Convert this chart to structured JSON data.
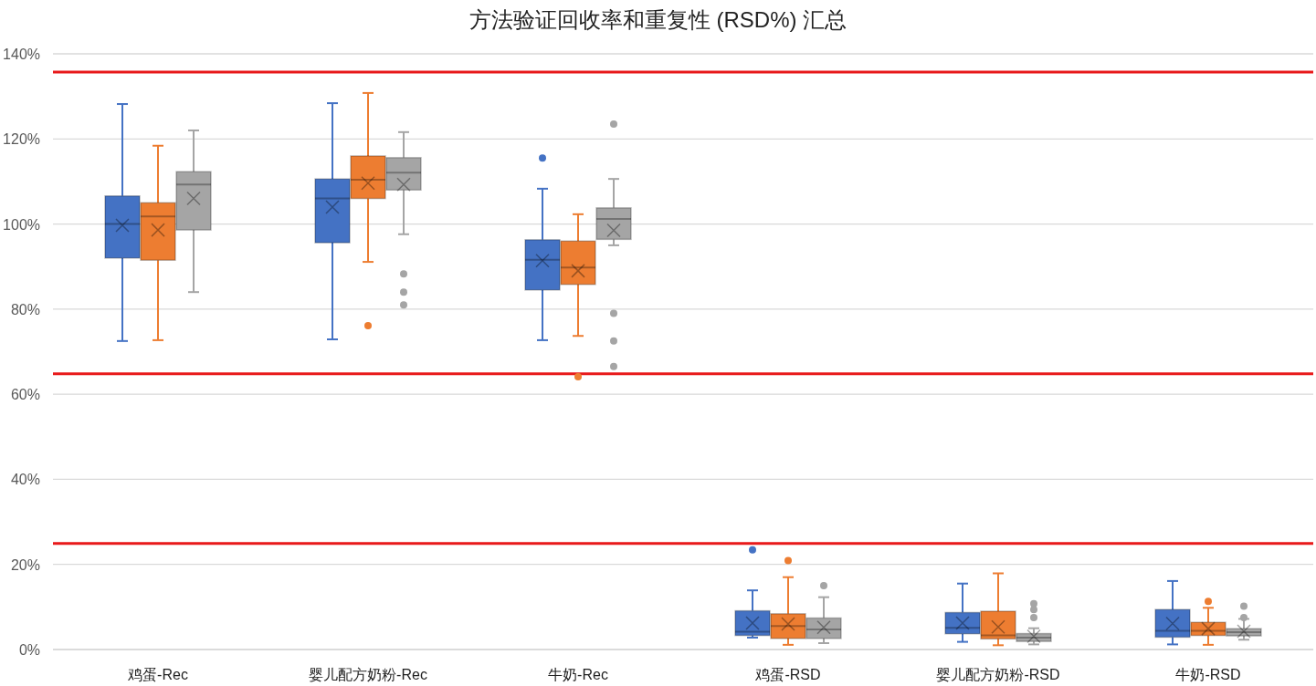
{
  "chart_data": {
    "type": "box",
    "title": "方法验证回收率和重复性 (RSD%) 汇总",
    "categories": [
      "鸡蛋-Rec",
      "婴儿配方奶粉-Rec",
      "牛奶-Rec",
      "鸡蛋-RSD",
      "婴儿配方奶粉-RSD",
      "牛奶-RSD"
    ],
    "ylim": [
      0,
      140
    ],
    "yticks": [
      {
        "value": 0,
        "label": "0%"
      },
      {
        "value": 20,
        "label": "20%"
      },
      {
        "value": 40,
        "label": "40%"
      },
      {
        "value": 60,
        "label": "60%"
      },
      {
        "value": 80,
        "label": "80%"
      },
      {
        "value": 100,
        "label": "100%"
      },
      {
        "value": 120,
        "label": "120%"
      },
      {
        "value": 140,
        "label": "140%"
      }
    ],
    "grid": "y",
    "ref_lines": [
      {
        "axis": "y",
        "value": 135.7,
        "color": "#e8191a"
      },
      {
        "axis": "y",
        "value": 64.8,
        "color": "#e8191a"
      },
      {
        "axis": "y",
        "value": 24.9,
        "color": "#e8191a"
      }
    ],
    "series": [
      {
        "color": "#4472c4",
        "boxes": [
          {
            "low": 72.5,
            "q1": 92,
            "median": 100,
            "q3": 106.6,
            "high": 128.2,
            "mean": 99.7
          },
          {
            "low": 72.9,
            "q1": 95.6,
            "median": 106,
            "q3": 110.6,
            "high": 128.4,
            "mean": 104
          },
          {
            "low": 72.7,
            "q1": 84.5,
            "median": 91.6,
            "q3": 96.3,
            "high": 108.3,
            "mean": 91.4,
            "outliers": [
              115.5
            ]
          },
          {
            "low": 2.8,
            "q1": 3.3,
            "median": 4.2,
            "q3": 9.1,
            "high": 13.9,
            "mean": 6.2,
            "outliers": [
              23.4
            ]
          },
          {
            "low": 1.8,
            "q1": 3.7,
            "median": 5.1,
            "q3": 8.7,
            "high": 15.5,
            "mean": 6.2
          },
          {
            "low": 1.2,
            "q1": 2.9,
            "median": 4.4,
            "q3": 9.4,
            "high": 16.1,
            "mean": 6.1
          }
        ]
      },
      {
        "color": "#ed7d31",
        "boxes": [
          {
            "low": 72.7,
            "q1": 91.5,
            "median": 101.8,
            "q3": 105,
            "high": 118.4,
            "mean": 98.6
          },
          {
            "low": 91.1,
            "q1": 106,
            "median": 110.4,
            "q3": 116,
            "high": 130.8,
            "mean": 109.6,
            "outliers": [
              76.1
            ]
          },
          {
            "low": 73.7,
            "q1": 85.8,
            "median": 89.8,
            "q3": 96,
            "high": 102.3,
            "mean": 89,
            "outliers": [
              64.1
            ]
          },
          {
            "low": 1.1,
            "q1": 2.6,
            "median": 5.5,
            "q3": 8.4,
            "high": 17,
            "mean": 6,
            "outliers": [
              20.9
            ]
          },
          {
            "low": 1,
            "q1": 2.5,
            "median": 3.3,
            "q3": 9,
            "high": 17.9,
            "mean": 5.3
          },
          {
            "low": 1.1,
            "q1": 3.3,
            "median": 4.4,
            "q3": 6.4,
            "high": 9.8,
            "mean": 4.9,
            "outliers": [
              11.3
            ]
          }
        ]
      },
      {
        "color": "#a5a5a5",
        "boxes": [
          {
            "low": 84,
            "q1": 98.6,
            "median": 109.3,
            "q3": 112.3,
            "high": 122,
            "mean": 106
          },
          {
            "low": 97.6,
            "q1": 108,
            "median": 112.1,
            "q3": 115.6,
            "high": 121.6,
            "mean": 109.3,
            "outliers": [
              88.3,
              84,
              81
            ]
          },
          {
            "low": 95,
            "q1": 96.4,
            "median": 101.2,
            "q3": 103.8,
            "high": 110.6,
            "mean": 98.5,
            "outliers": [
              123.5,
              79,
              72.5,
              66.5
            ]
          },
          {
            "low": 1.5,
            "q1": 2.6,
            "median": 4.7,
            "q3": 7.4,
            "high": 12.3,
            "mean": 5.2,
            "outliers": [
              15
            ]
          },
          {
            "low": 1.2,
            "q1": 1.9,
            "median": 2.8,
            "q3": 3.75,
            "high": 5,
            "mean": 3.1,
            "outliers": [
              10.8,
              9.4,
              7.5
            ]
          },
          {
            "low": 2.3,
            "q1": 3.2,
            "median": 4.1,
            "q3": 4.9,
            "high": 7.2,
            "mean": 4.3,
            "outliers": [
              10.2,
              7.5
            ]
          }
        ]
      }
    ]
  }
}
